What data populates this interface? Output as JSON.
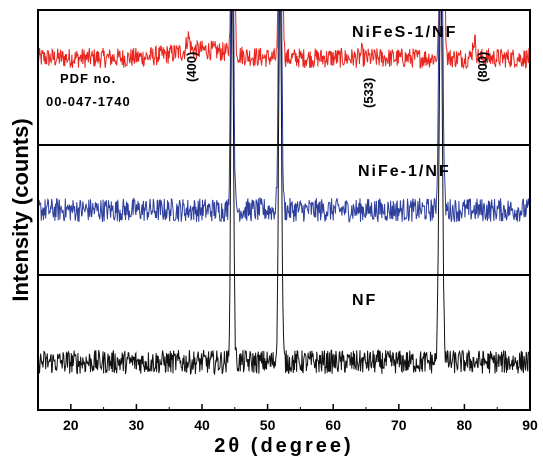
{
  "chart_data": {
    "type": "line",
    "xlabel": "2θ (degree)",
    "ylabel": "Intensity (counts)",
    "xlim": [
      15,
      90
    ],
    "xticks": [
      20,
      30,
      40,
      50,
      60,
      70,
      80,
      90
    ],
    "grid": false,
    "annotations": {
      "pdf_line1": "PDF no.",
      "pdf_line2": "00-047-1740",
      "peaks": [
        {
          "label": "(400)",
          "x": 37.9
        },
        {
          "label": "(533)",
          "x": 64.3
        },
        {
          "label": "(800)",
          "x": 81.5
        }
      ]
    },
    "series": [
      {
        "name": "NiFeS-1/NF",
        "color": "#e8261f",
        "baseline": 0.88,
        "noise": 0.025,
        "peaks": [
          {
            "x": 37.9,
            "height": 0.35,
            "width": 0.35
          },
          {
            "x": 44.7,
            "height": 10,
            "width": 0.28
          },
          {
            "x": 52.0,
            "height": 10,
            "width": 0.3
          },
          {
            "x": 64.3,
            "height": 0.14,
            "width": 0.2
          },
          {
            "x": 76.6,
            "height": 10,
            "width": 0.35
          },
          {
            "x": 81.5,
            "height": 0.45,
            "width": 0.35
          }
        ]
      },
      {
        "name": "NiFe-1/NF",
        "color": "#2e3f9c",
        "baseline": 0.5,
        "noise": 0.03,
        "peaks": [
          {
            "x": 44.6,
            "height": 10,
            "width": 0.28
          },
          {
            "x": 51.9,
            "height": 10,
            "width": 0.3
          },
          {
            "x": 76.4,
            "height": 10,
            "width": 0.35
          }
        ]
      },
      {
        "name": "NF",
        "color": "#111111",
        "baseline": 0.12,
        "noise": 0.03,
        "peaks": [
          {
            "x": 44.6,
            "height": 10,
            "width": 0.28
          },
          {
            "x": 51.9,
            "height": 10,
            "width": 0.3
          },
          {
            "x": 76.4,
            "height": 10,
            "width": 0.35
          }
        ]
      }
    ]
  }
}
